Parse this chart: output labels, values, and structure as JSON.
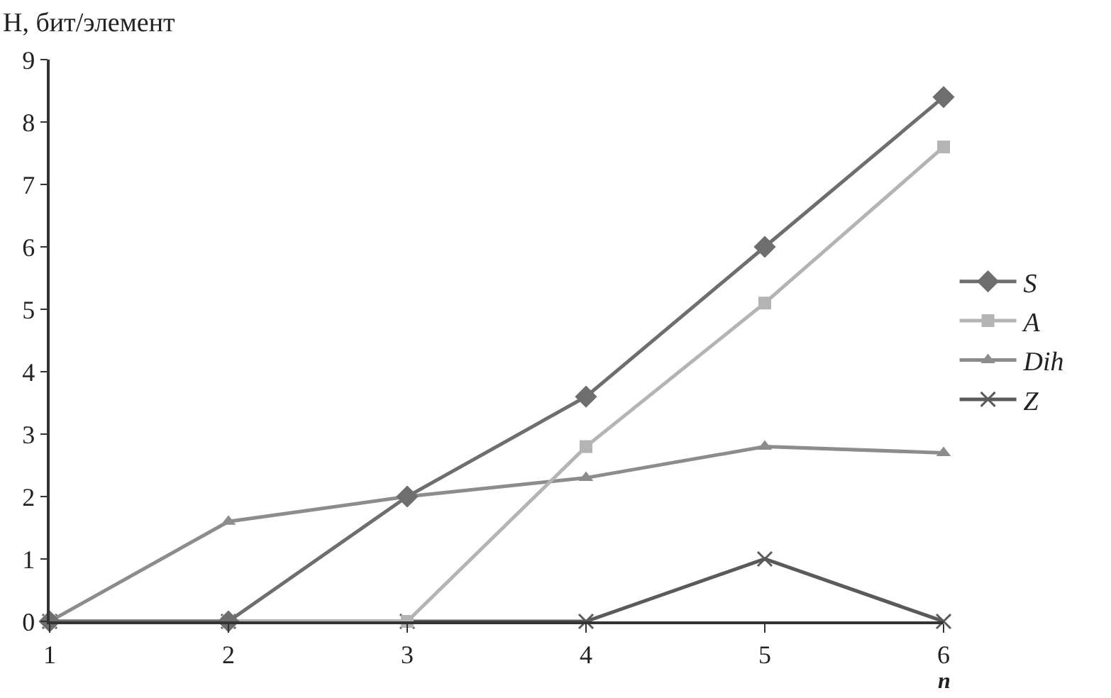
{
  "chart_data": {
    "type": "line",
    "xlabel": "n",
    "ylabel": "H, бит/элемент",
    "x": [
      1,
      2,
      3,
      4,
      5,
      6
    ],
    "xlim": [
      1,
      6
    ],
    "xticks": [
      1,
      2,
      3,
      4,
      5,
      6
    ],
    "ylim": [
      0,
      9
    ],
    "yticks": [
      0,
      1,
      2,
      3,
      4,
      5,
      6,
      7,
      8,
      9
    ],
    "grid": false,
    "legend": "right",
    "line_style": "solid",
    "series": [
      {
        "name": "S",
        "color": "#6e6e6e",
        "marker": "diamond",
        "values": [
          0,
          0,
          2,
          3.6,
          6,
          8.4
        ]
      },
      {
        "name": "A",
        "color": "#b4b4b4",
        "marker": "square",
        "values": [
          0,
          0,
          0,
          2.8,
          5.1,
          7.6
        ]
      },
      {
        "name": "Dih",
        "color": "#8c8c8c",
        "marker": "triangle",
        "values": [
          0,
          1.6,
          2,
          2.3,
          2.8,
          2.7
        ]
      },
      {
        "name": "Z",
        "color": "#5a5a5a",
        "marker": "cross",
        "values": [
          0,
          0,
          0,
          0,
          1,
          0
        ]
      }
    ]
  }
}
